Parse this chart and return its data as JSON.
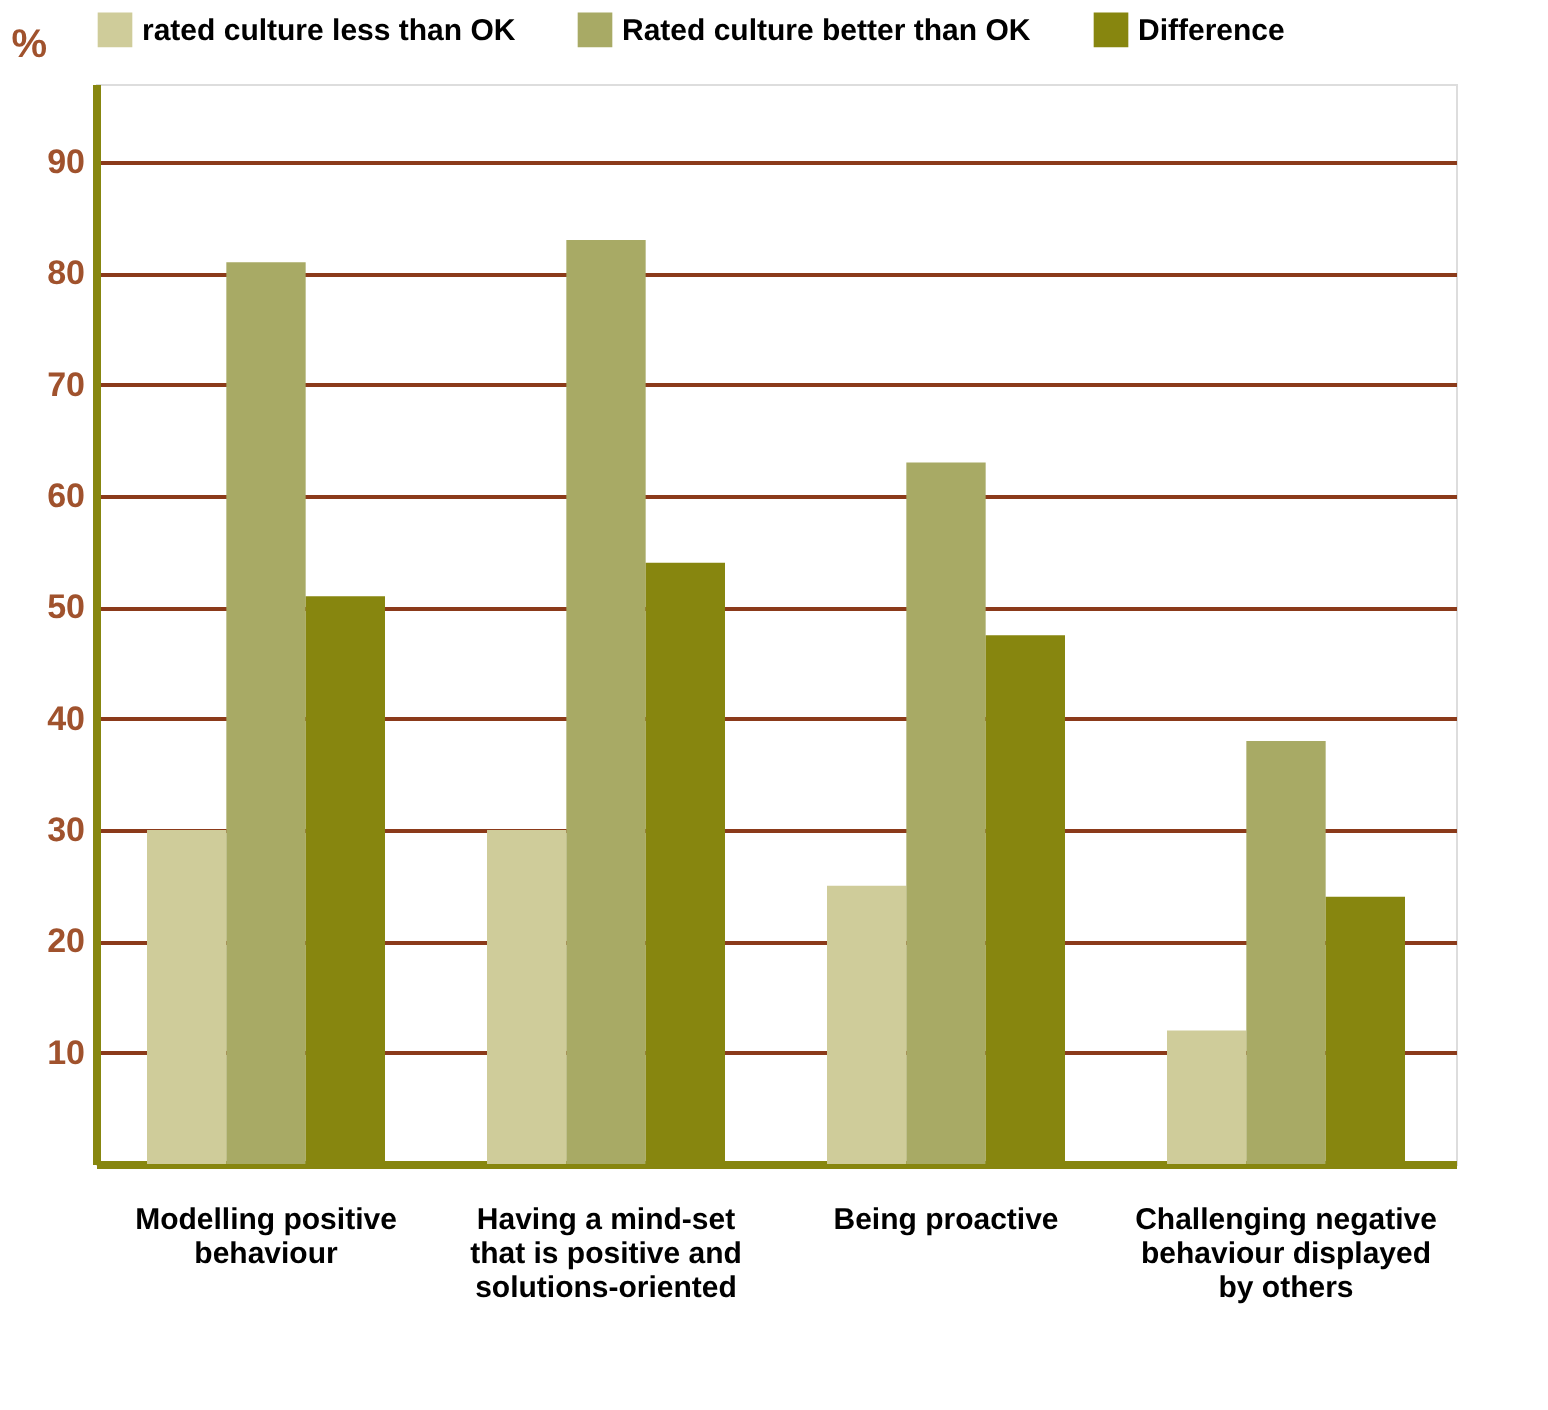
{
  "chart_data": {
    "type": "bar",
    "ylabel": "%",
    "categories": [
      "Modelling positive behaviour",
      "Having a mind-set that is positive and solutions-oriented",
      "Being proactive",
      "Challenging negative behaviour displayed by others"
    ],
    "series": [
      {
        "name": "rated culture less than OK",
        "color": "#cfcc9a",
        "values": [
          30,
          30,
          25,
          12
        ]
      },
      {
        "name": "Rated culture better than OK",
        "color": "#a8aa65",
        "values": [
          81,
          83,
          63,
          38
        ]
      },
      {
        "name": "Difference",
        "color": "#87860f",
        "values": [
          51,
          54,
          47.5,
          24
        ]
      }
    ],
    "ylim": [
      0,
      97
    ],
    "yticks": [
      10,
      20,
      30,
      40,
      50,
      60,
      70,
      80,
      90
    ],
    "grid": "y",
    "legend": "top"
  }
}
